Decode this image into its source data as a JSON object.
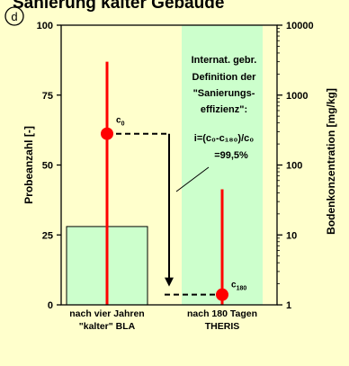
{
  "heading": {
    "text": "Sanierung kalter Gebäude",
    "color": "#000000"
  },
  "panel_label": "d",
  "colors": {
    "background": "#ffffcc",
    "bar_fill": "#ccffcc",
    "bar_stroke": "#000000",
    "range_line": "#ff0000",
    "marker": "#ff0000"
  },
  "chart_data": {
    "type": "bar",
    "categories": [
      "nach vier Jahren \"kalter\" BLA",
      "nach 180 Tagen THERIS"
    ],
    "category_lines": [
      [
        "nach vier Jahren",
        "\"kalter\" BLA"
      ],
      [
        "nach 180 Tagen",
        "THERIS"
      ]
    ],
    "bars": [
      {
        "category": "nach vier Jahren \"kalter\" BLA",
        "value": 28,
        "axis": "left"
      },
      {
        "category": "nach 180 Tagen THERIS",
        "value": 100,
        "axis": "left"
      }
    ],
    "ranges": [
      {
        "category": "nach vier Jahren \"kalter\" BLA",
        "min": 1,
        "max": 3000,
        "axis": "right"
      },
      {
        "category": "nach 180 Tagen THERIS",
        "min": 1,
        "max": 45,
        "axis": "right"
      }
    ],
    "points": [
      {
        "category": "nach vier Jahren \"kalter\" BLA",
        "value": 280,
        "axis": "right",
        "label": "c",
        "subscript": "0"
      },
      {
        "category": "nach 180 Tagen THERIS",
        "value": 1.4,
        "axis": "right",
        "label": "c",
        "subscript": "180"
      }
    ],
    "left_axis": {
      "label": "Probeanzahl [-]",
      "min": 0,
      "max": 100,
      "ticks": [
        0,
        25,
        50,
        75,
        100
      ],
      "tick_labels": [
        "0",
        "25",
        "50",
        "75",
        "100"
      ]
    },
    "right_axis": {
      "label": "Bodenkonzentration [mg/kg]",
      "scale": "log",
      "min": 1,
      "max": 10000,
      "ticks": [
        1,
        10,
        100,
        1000,
        10000
      ],
      "tick_labels": [
        "1",
        "10",
        "100",
        "1000",
        "10000"
      ]
    },
    "annotation": {
      "lines": [
        "Internat. gebr.",
        "Definition der",
        "\"Sanierungs-",
        "effizienz\":"
      ],
      "formula": "i=(c₀-c₁₈₀)/c₀",
      "result": "=99,5%"
    },
    "grid": false,
    "legend": "none"
  }
}
